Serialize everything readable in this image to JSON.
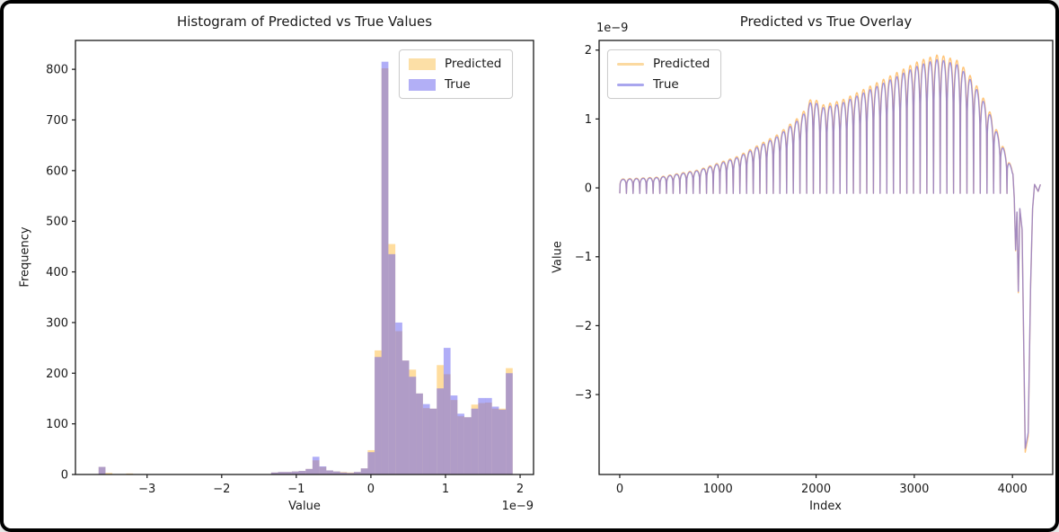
{
  "window": {
    "background": "#ffffff",
    "frame_color": "#000000"
  },
  "chart_data": [
    {
      "id": "histogram",
      "type": "bar",
      "title": "Histogram of Predicted vs True Values",
      "xlabel": "Value",
      "ylabel": "Frequency",
      "x_offset_text": "1e−9",
      "xlim": [
        -3.96,
        2.18
      ],
      "ylim": [
        0,
        857
      ],
      "xticks": [
        -3,
        -2,
        -1,
        0,
        1,
        2
      ],
      "yticks": [
        0,
        100,
        200,
        300,
        400,
        500,
        600,
        700,
        800
      ],
      "grid": false,
      "legend_position": "upper-right",
      "legend": [
        {
          "label": "Predicted",
          "swatch_color": "#fcdfa6"
        },
        {
          "label": "True",
          "swatch_color": "#b2aff6"
        }
      ],
      "colors": {
        "predicted_fill": "rgba(255,165,0,0.38)",
        "true_fill": "rgba(98,92,240,0.5)",
        "spine": "#1a1a1a",
        "text": "#1a1a1a"
      },
      "bin_width": 0.0925,
      "bars_units": "1e-9",
      "bars": [
        {
          "x": -3.65,
          "predicted": 15,
          "true": 15
        },
        {
          "x": -3.558,
          "predicted": 3,
          "true": 0
        },
        {
          "x": -3.28,
          "predicted": 2,
          "true": 0
        },
        {
          "x": -1.338,
          "predicted": 4,
          "true": 4
        },
        {
          "x": -1.245,
          "predicted": 5,
          "true": 5
        },
        {
          "x": -1.153,
          "predicted": 5,
          "true": 5
        },
        {
          "x": -1.06,
          "predicted": 6,
          "true": 6
        },
        {
          "x": -0.968,
          "predicted": 7,
          "true": 7
        },
        {
          "x": -0.875,
          "predicted": 11,
          "true": 11
        },
        {
          "x": -0.783,
          "predicted": 28,
          "true": 35
        },
        {
          "x": -0.69,
          "predicted": 15,
          "true": 16
        },
        {
          "x": -0.598,
          "predicted": 8,
          "true": 8
        },
        {
          "x": -0.505,
          "predicted": 6,
          "true": 6
        },
        {
          "x": -0.413,
          "predicted": 5,
          "true": 4
        },
        {
          "x": -0.32,
          "predicted": 4,
          "true": 3
        },
        {
          "x": -0.228,
          "predicted": 5,
          "true": 5
        },
        {
          "x": -0.135,
          "predicted": 12,
          "true": 12
        },
        {
          "x": -0.043,
          "predicted": 48,
          "true": 44
        },
        {
          "x": 0.05,
          "predicted": 245,
          "true": 232
        },
        {
          "x": 0.142,
          "predicted": 802,
          "true": 815
        },
        {
          "x": 0.235,
          "predicted": 455,
          "true": 435
        },
        {
          "x": 0.328,
          "predicted": 283,
          "true": 300
        },
        {
          "x": 0.42,
          "predicted": 225,
          "true": 225
        },
        {
          "x": 0.513,
          "predicted": 207,
          "true": 193
        },
        {
          "x": 0.605,
          "predicted": 160,
          "true": 160
        },
        {
          "x": 0.698,
          "predicted": 131,
          "true": 139
        },
        {
          "x": 0.79,
          "predicted": 130,
          "true": 130
        },
        {
          "x": 0.883,
          "predicted": 216,
          "true": 170
        },
        {
          "x": 0.975,
          "predicted": 198,
          "true": 250
        },
        {
          "x": 1.068,
          "predicted": 147,
          "true": 156
        },
        {
          "x": 1.16,
          "predicted": 115,
          "true": 120
        },
        {
          "x": 1.253,
          "predicted": 113,
          "true": 113
        },
        {
          "x": 1.345,
          "predicted": 138,
          "true": 130
        },
        {
          "x": 1.438,
          "predicted": 141,
          "true": 151
        },
        {
          "x": 1.53,
          "predicted": 142,
          "true": 151
        },
        {
          "x": 1.623,
          "predicted": 130,
          "true": 134
        },
        {
          "x": 1.715,
          "predicted": 130,
          "true": 128
        },
        {
          "x": 1.808,
          "predicted": 210,
          "true": 200
        }
      ]
    },
    {
      "id": "overlay",
      "type": "line",
      "title": "Predicted vs True Overlay",
      "xlabel": "Index",
      "ylabel": "Value",
      "y_offset_text": "1e−9",
      "xlim": [
        -210,
        4410
      ],
      "ylim": [
        -4.16,
        2.14
      ],
      "xticks": [
        0,
        1000,
        2000,
        3000,
        4000
      ],
      "yticks": [
        2,
        1,
        0,
        -1,
        -2,
        -3
      ],
      "grid": false,
      "legend_position": "upper-left",
      "legend": [
        {
          "label": "Predicted",
          "swatch_color": "#fbd9a0"
        },
        {
          "label": "True",
          "swatch_color": "#a9a6ee"
        }
      ],
      "colors": {
        "predicted_line": "rgba(255,166,50,0.65)",
        "true_line": "rgba(106,100,232,0.62)",
        "spine": "#1a1a1a",
        "text": "#1a1a1a"
      },
      "series_units": "1e-9",
      "waveform": {
        "description": "oscillating humps: value = amplitude(x) * |sin(pi*x/period)|^sharpness - dip",
        "period": 68,
        "sharpness": 0.22,
        "dip": 0.08,
        "samples_per_cycle": 16,
        "main_end": 4000,
        "envelope_keypoints": [
          [
            0,
            0.2
          ],
          [
            400,
            0.23
          ],
          [
            800,
            0.33
          ],
          [
            1200,
            0.52
          ],
          [
            1600,
            0.82
          ],
          [
            1850,
            1.1
          ],
          [
            1960,
            1.36
          ],
          [
            2060,
            1.24
          ],
          [
            2250,
            1.3
          ],
          [
            2500,
            1.47
          ],
          [
            2800,
            1.68
          ],
          [
            3050,
            1.86
          ],
          [
            3250,
            1.95
          ],
          [
            3450,
            1.86
          ],
          [
            3600,
            1.6
          ],
          [
            3750,
            1.22
          ],
          [
            3850,
            0.85
          ],
          [
            3950,
            0.5
          ],
          [
            4000,
            0.33
          ]
        ],
        "crash_tail_points": [
          [
            4005,
            0.2
          ],
          [
            4018,
            -0.15
          ],
          [
            4032,
            -0.9
          ],
          [
            4046,
            -0.35
          ],
          [
            4060,
            -1.5
          ],
          [
            4075,
            -0.3
          ],
          [
            4098,
            -0.6
          ],
          [
            4130,
            -3.78
          ],
          [
            4160,
            -3.55
          ],
          [
            4185,
            -1.4
          ],
          [
            4205,
            -0.3
          ],
          [
            4225,
            0.05
          ],
          [
            4262,
            -0.05
          ],
          [
            4285,
            0.05
          ]
        ],
        "predicted_scale": 1.035
      }
    }
  ]
}
